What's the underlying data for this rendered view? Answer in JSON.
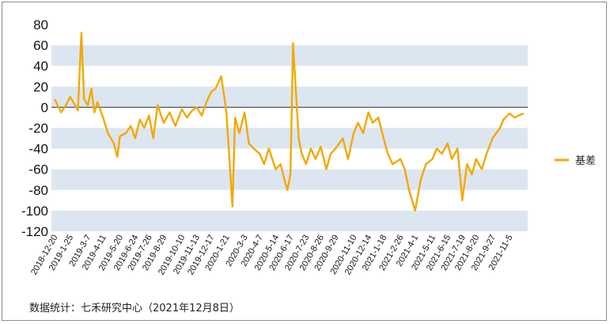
{
  "chart_data": {
    "type": "line",
    "title": "",
    "xlabel": "",
    "ylabel": "",
    "ylim": [
      -120,
      80
    ],
    "yticks": [
      80,
      60,
      40,
      20,
      0,
      -20,
      -40,
      -60,
      -80,
      -100,
      -120
    ],
    "grid": "alternating horizontal bands",
    "legend_position": "right",
    "xtick_labels": [
      "2018-12-20",
      "2019-1-25",
      "2019-3-7",
      "2019-4-11",
      "2019-5-20",
      "2019-6-24",
      "2019-7-26",
      "2019-8-29",
      "2019-10-10",
      "2019-11-13",
      "2019-12-17",
      "2020-1-21",
      "2020-3-3",
      "2020-4-7",
      "2020-5-14",
      "2020-6-17",
      "2020-7-23",
      "2020-8-26",
      "2020-9-29",
      "2020-11-10",
      "2020-12-14",
      "2021-1-18",
      "2021-2-26",
      "2021-4-1",
      "2021-5-11",
      "2021-6-15",
      "2021-7-19",
      "2021-8-20",
      "2021-9-27",
      "2021-11-5"
    ],
    "series": [
      {
        "name": "基差",
        "color": "#F2A900",
        "x": [
          "2018-12-20",
          "2019-1-4",
          "2019-1-15",
          "2019-1-25",
          "2019-2-12",
          "2019-2-20",
          "2019-2-26",
          "2019-3-7",
          "2019-3-15",
          "2019-3-22",
          "2019-3-29",
          "2019-4-11",
          "2019-4-22",
          "2019-5-6",
          "2019-5-14",
          "2019-5-20",
          "2019-6-3",
          "2019-6-14",
          "2019-6-24",
          "2019-7-5",
          "2019-7-15",
          "2019-7-26",
          "2019-8-5",
          "2019-8-15",
          "2019-8-29",
          "2019-9-12",
          "2019-9-25",
          "2019-10-10",
          "2019-10-22",
          "2019-11-1",
          "2019-11-13",
          "2019-11-25",
          "2019-12-6",
          "2019-12-17",
          "2019-12-27",
          "2020-1-9",
          "2020-1-16",
          "2020-1-21",
          "2020-2-4",
          "2020-2-10",
          "2020-2-20",
          "2020-3-3",
          "2020-3-13",
          "2020-3-24",
          "2020-4-7",
          "2020-4-17",
          "2020-4-28",
          "2020-5-14",
          "2020-5-25",
          "2020-6-3",
          "2020-6-10",
          "2020-6-17",
          "2020-6-23",
          "2020-7-6",
          "2020-7-13",
          "2020-7-23",
          "2020-8-3",
          "2020-8-14",
          "2020-8-26",
          "2020-9-8",
          "2020-9-18",
          "2020-9-29",
          "2020-10-16",
          "2020-10-28",
          "2020-11-10",
          "2020-11-20",
          "2020-12-2",
          "2020-12-14",
          "2020-12-24",
          "2021-1-6",
          "2021-1-18",
          "2021-1-28",
          "2021-2-8",
          "2021-2-26",
          "2021-3-8",
          "2021-3-18",
          "2021-4-1",
          "2021-4-14",
          "2021-4-26",
          "2021-5-11",
          "2021-5-21",
          "2021-6-2",
          "2021-6-15",
          "2021-6-25",
          "2021-7-8",
          "2021-7-19",
          "2021-7-30",
          "2021-8-10",
          "2021-8-20",
          "2021-9-2",
          "2021-9-13",
          "2021-9-27",
          "2021-10-14",
          "2021-10-22",
          "2021-11-5",
          "2021-11-17",
          "2021-11-26",
          "2021-12-8"
        ],
        "y": [
          8,
          -5,
          2,
          10,
          -3,
          72,
          8,
          2,
          18,
          -5,
          5,
          -10,
          -25,
          -35,
          -48,
          -28,
          -25,
          -18,
          -30,
          -12,
          -20,
          -8,
          -30,
          2,
          -15,
          -5,
          -18,
          -2,
          -10,
          -4,
          0,
          -8,
          5,
          15,
          18,
          30,
          10,
          -5,
          -96,
          -10,
          -25,
          -5,
          -35,
          -40,
          -45,
          -55,
          -40,
          -60,
          -55,
          -70,
          -80,
          -65,
          62,
          -30,
          -45,
          -55,
          -40,
          -50,
          -38,
          -60,
          -45,
          -40,
          -30,
          -50,
          -25,
          -15,
          -25,
          -5,
          -15,
          -10,
          -30,
          -45,
          -55,
          -50,
          -60,
          -80,
          -100,
          -70,
          -55,
          -50,
          -40,
          -45,
          -35,
          -50,
          -40,
          -90,
          -55,
          -65,
          -50,
          -60,
          -45,
          -30,
          -20,
          -12,
          -6,
          -10,
          -8,
          -6
        ]
      }
    ]
  },
  "source_note": "数据统计：七禾研究中心（2021年12月8日）"
}
